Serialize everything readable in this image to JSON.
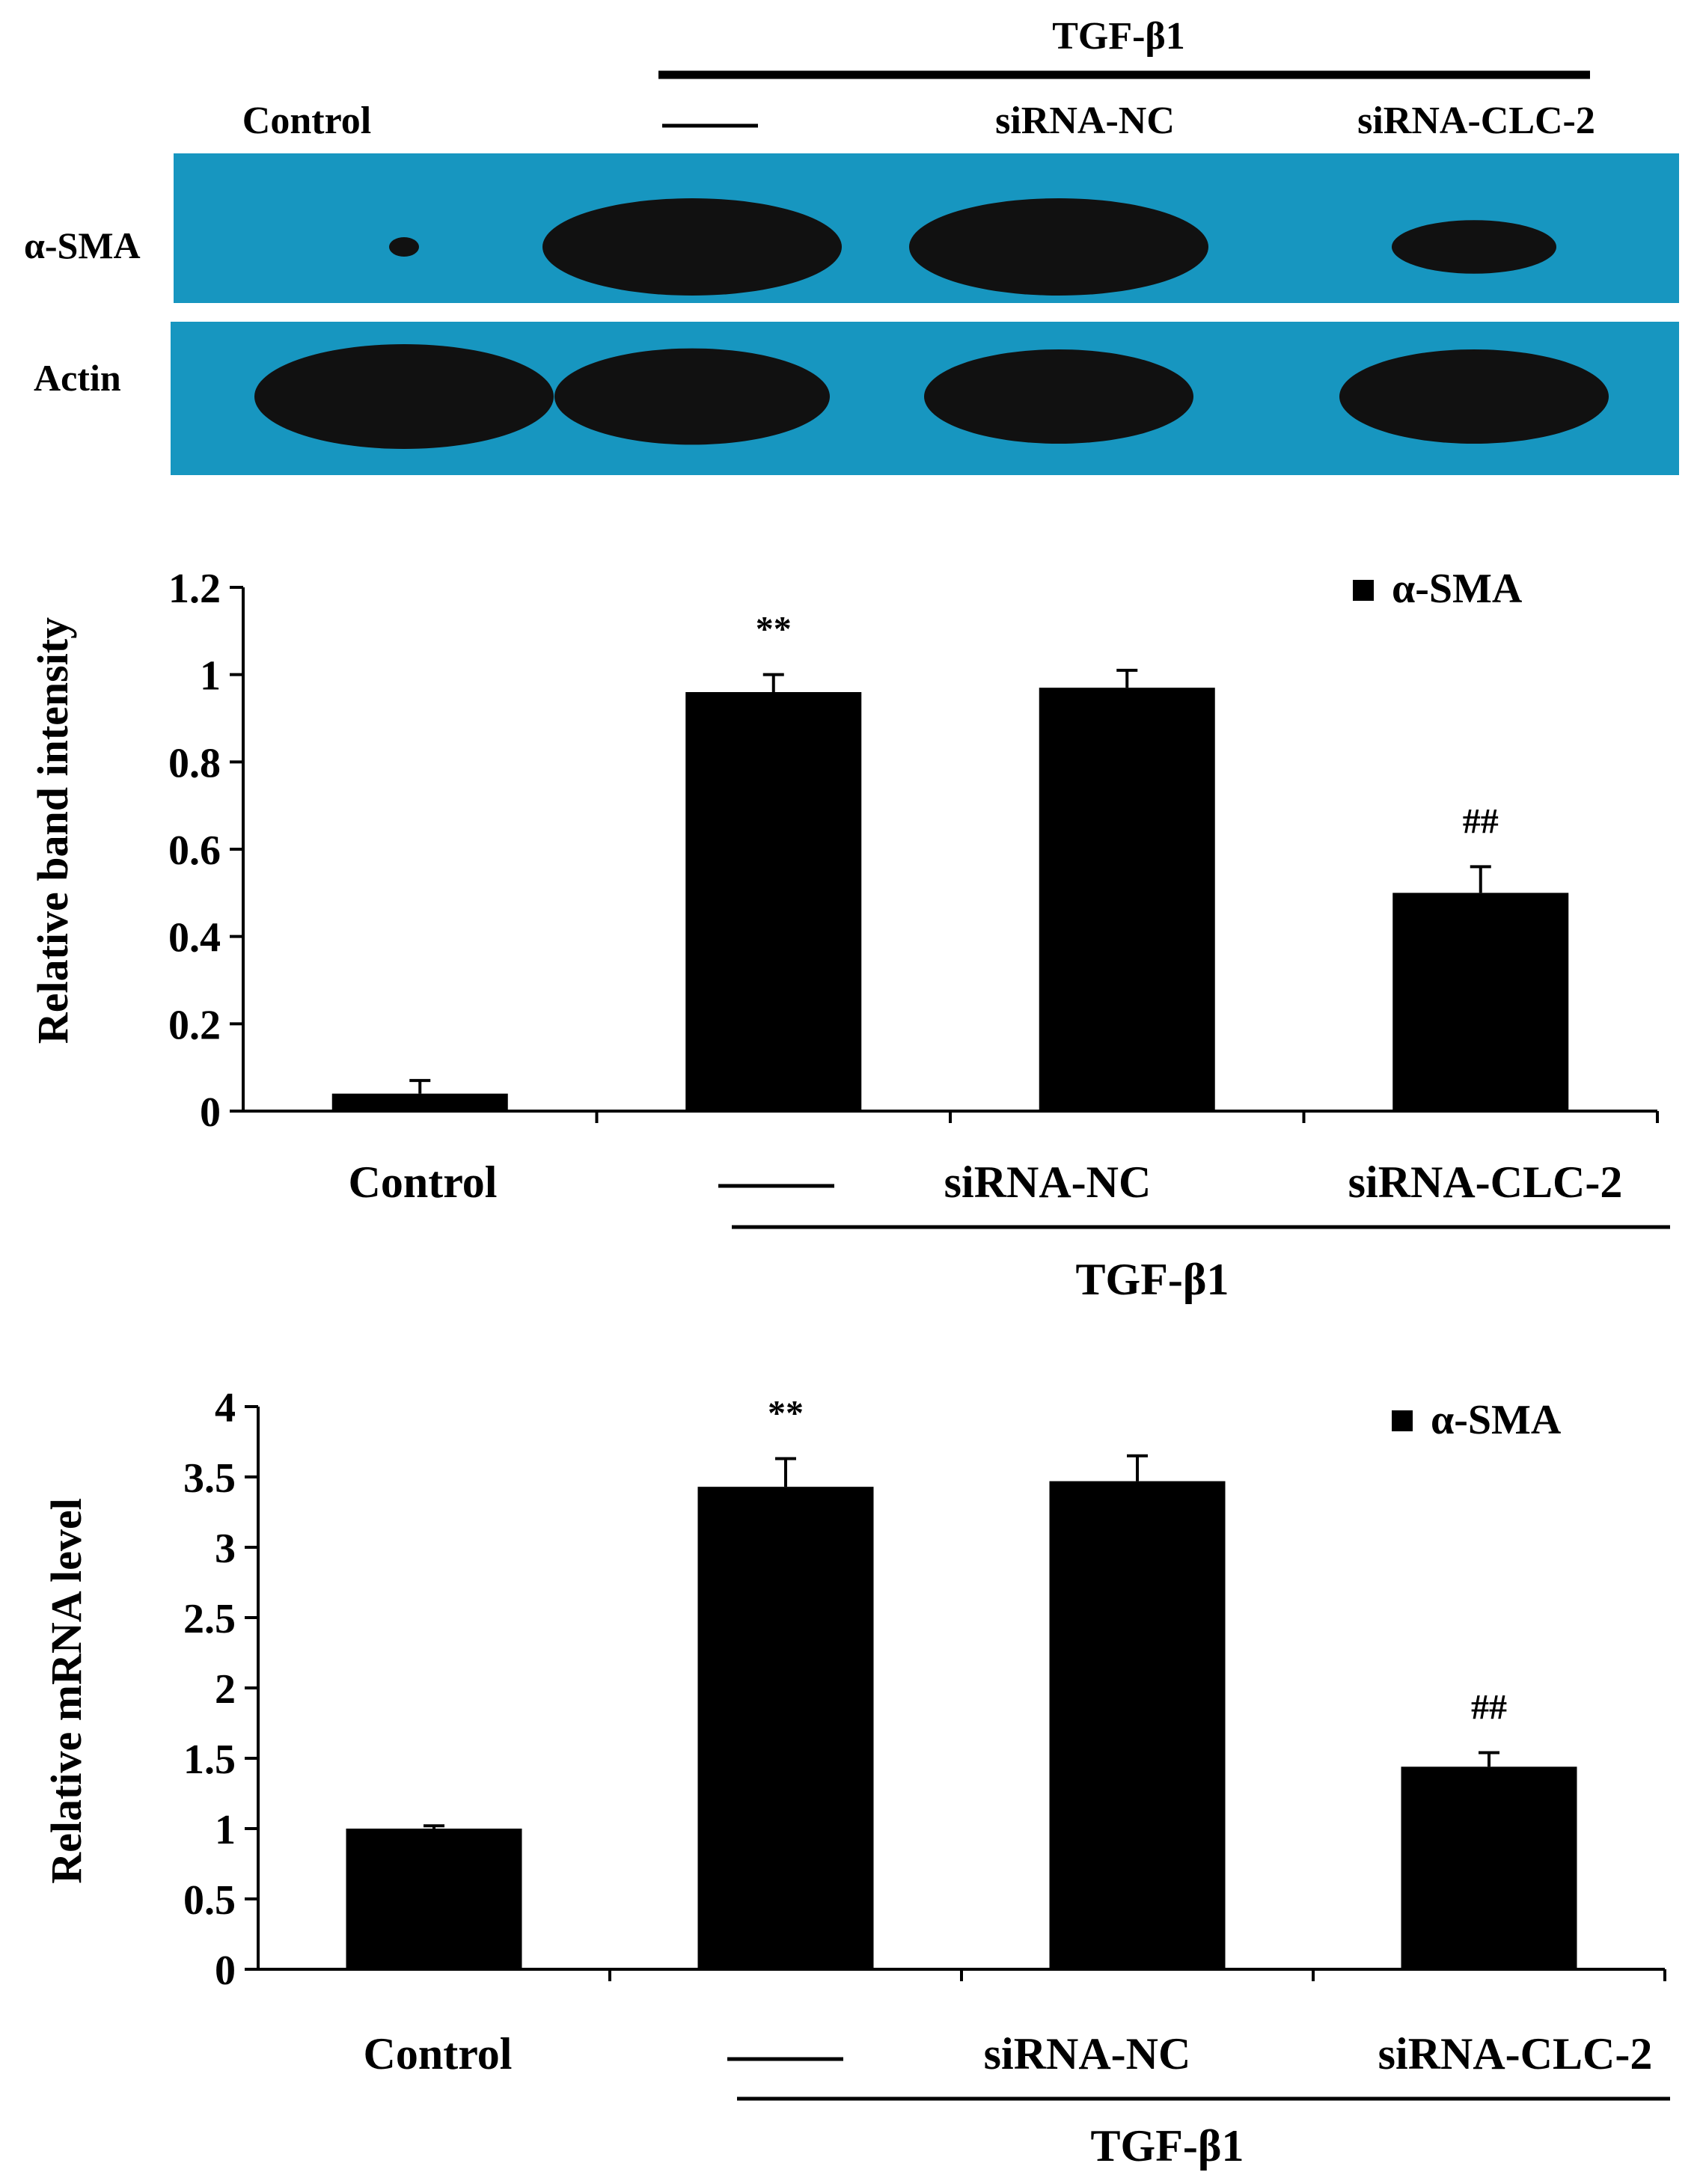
{
  "colors": {
    "blot_background": "#1796c0",
    "band": "#111111",
    "bar": "#000000",
    "text": "#000000",
    "background": "#ffffff"
  },
  "blot": {
    "treatment_label": "TGF-β1",
    "lane_labels": [
      "Control",
      "——",
      "siRNA-NC",
      "siRNA-CLC-2"
    ],
    "rows": [
      {
        "label": "α-SMA",
        "band_intensity": [
          0.05,
          1.0,
          1.0,
          0.55
        ]
      },
      {
        "label": "Actin",
        "band_intensity": [
          1.0,
          0.92,
          0.9,
          0.9
        ]
      }
    ]
  },
  "chart_data": [
    {
      "type": "bar",
      "categories": [
        "Control",
        "——",
        "siRNA-NC",
        "siRNA-CLC-2"
      ],
      "group_label": "TGF-β1",
      "series": [
        {
          "name": "α-SMA",
          "values": [
            0.04,
            0.96,
            0.97,
            0.5
          ],
          "errors": [
            0.03,
            0.04,
            0.04,
            0.06
          ]
        }
      ],
      "annotations": [
        "",
        "**",
        "",
        "##"
      ],
      "ylabel": "Relative band intensity",
      "ylim": [
        0,
        1.2
      ],
      "yticks": [
        "0",
        "0.2",
        "0.4",
        "0.6",
        "0.8",
        "1",
        "1.2"
      ],
      "legend": "top-right",
      "grid": false
    },
    {
      "type": "bar",
      "categories": [
        "Control",
        "——",
        "siRNA-NC",
        "siRNA-CLC-2"
      ],
      "group_label": "TGF-β1",
      "series": [
        {
          "name": "α-SMA",
          "values": [
            1.0,
            3.43,
            3.47,
            1.44
          ],
          "errors": [
            0.02,
            0.2,
            0.18,
            0.1
          ]
        }
      ],
      "annotations": [
        "",
        "**",
        "",
        "##"
      ],
      "ylabel": "Relative mRNA level",
      "ylim": [
        0,
        4
      ],
      "yticks": [
        "0",
        "0.5",
        "1",
        "1.5",
        "2",
        "2.5",
        "3",
        "3.5",
        "4"
      ],
      "legend": "top-right",
      "grid": false
    }
  ]
}
